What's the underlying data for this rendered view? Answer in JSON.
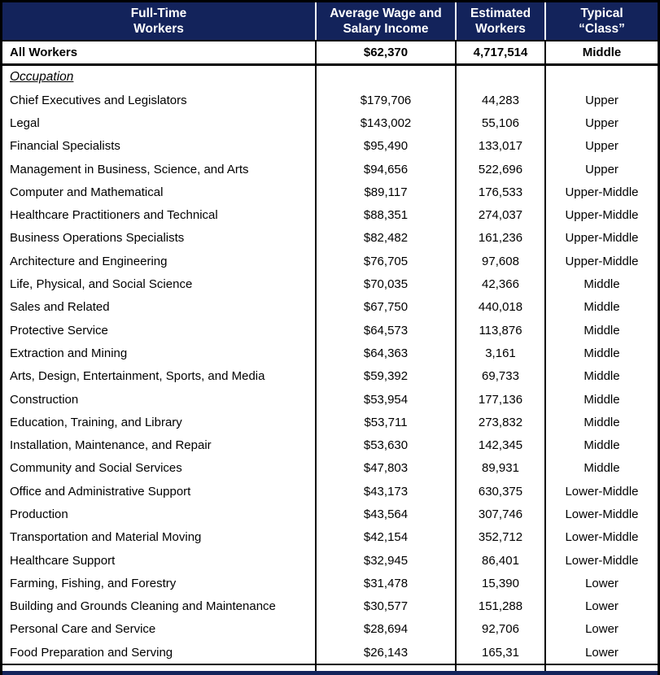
{
  "colors": {
    "header_bg": "#13235B",
    "header_text": "#FFFFFF",
    "border": "#000000",
    "body_bg": "#FFFFFF"
  },
  "table": {
    "columns": [
      {
        "label": "Full-Time\nWorkers"
      },
      {
        "label": "Average Wage and\nSalary Income"
      },
      {
        "label": "Estimated\nWorkers"
      },
      {
        "label": "Typical\n“Class”"
      }
    ],
    "summary_row": {
      "name": "All Workers",
      "wage": "$62,370",
      "workers": "4,717,514",
      "class": "Middle"
    },
    "section_label": "Occupation",
    "rows": [
      {
        "name": "Chief Executives and Legislators",
        "wage": "$179,706",
        "workers": "44,283",
        "class": "Upper"
      },
      {
        "name": "Legal",
        "wage": "$143,002",
        "workers": "55,106",
        "class": "Upper"
      },
      {
        "name": "Financial Specialists",
        "wage": "$95,490",
        "workers": "133,017",
        "class": "Upper"
      },
      {
        "name": "Management in Business, Science, and Arts",
        "wage": "$94,656",
        "workers": "522,696",
        "class": "Upper"
      },
      {
        "name": "Computer and Mathematical",
        "wage": "$89,117",
        "workers": "176,533",
        "class": "Upper-Middle"
      },
      {
        "name": "Healthcare Practitioners and Technical",
        "wage": "$88,351",
        "workers": "274,037",
        "class": "Upper-Middle"
      },
      {
        "name": "Business Operations Specialists",
        "wage": "$82,482",
        "workers": "161,236",
        "class": "Upper-Middle"
      },
      {
        "name": "Architecture and Engineering",
        "wage": "$76,705",
        "workers": "97,608",
        "class": "Upper-Middle"
      },
      {
        "name": "Life, Physical, and Social Science",
        "wage": "$70,035",
        "workers": "42,366",
        "class": "Middle"
      },
      {
        "name": "Sales and Related",
        "wage": "$67,750",
        "workers": "440,018",
        "class": "Middle"
      },
      {
        "name": "Protective Service",
        "wage": "$64,573",
        "workers": "113,876",
        "class": "Middle"
      },
      {
        "name": "Extraction and Mining",
        "wage": "$64,363",
        "workers": "3,161",
        "class": "Middle"
      },
      {
        "name": "Arts, Design, Entertainment, Sports, and Media",
        "wage": "$59,392",
        "workers": "69,733",
        "class": "Middle"
      },
      {
        "name": "Construction",
        "wage": "$53,954",
        "workers": "177,136",
        "class": "Middle"
      },
      {
        "name": "Education, Training, and Library",
        "wage": "$53,711",
        "workers": "273,832",
        "class": "Middle"
      },
      {
        "name": "Installation, Maintenance, and Repair",
        "wage": "$53,630",
        "workers": "142,345",
        "class": "Middle"
      },
      {
        "name": "Community and Social Services",
        "wage": "$47,803",
        "workers": "89,931",
        "class": "Middle"
      },
      {
        "name": "Office and Administrative Support",
        "wage": "$43,173",
        "workers": "630,375",
        "class": "Lower-Middle"
      },
      {
        "name": "Production",
        "wage": "$43,564",
        "workers": "307,746",
        "class": "Lower-Middle"
      },
      {
        "name": "Transportation and Material Moving",
        "wage": "$42,154",
        "workers": "352,712",
        "class": "Lower-Middle"
      },
      {
        "name": "Healthcare Support",
        "wage": "$32,945",
        "workers": "86,401",
        "class": "Lower-Middle"
      },
      {
        "name": "Farming, Fishing, and Forestry",
        "wage": "$31,478",
        "workers": "15,390",
        "class": "Lower"
      },
      {
        "name": "Building and Grounds Cleaning and Maintenance",
        "wage": "$30,577",
        "workers": "151,288",
        "class": "Lower"
      },
      {
        "name": "Personal Care and Service",
        "wage": "$28,694",
        "workers": "92,706",
        "class": "Lower"
      },
      {
        "name": "Food Preparation and Serving",
        "wage": "$26,143",
        "workers": "165,31",
        "class": "Lower"
      }
    ]
  }
}
